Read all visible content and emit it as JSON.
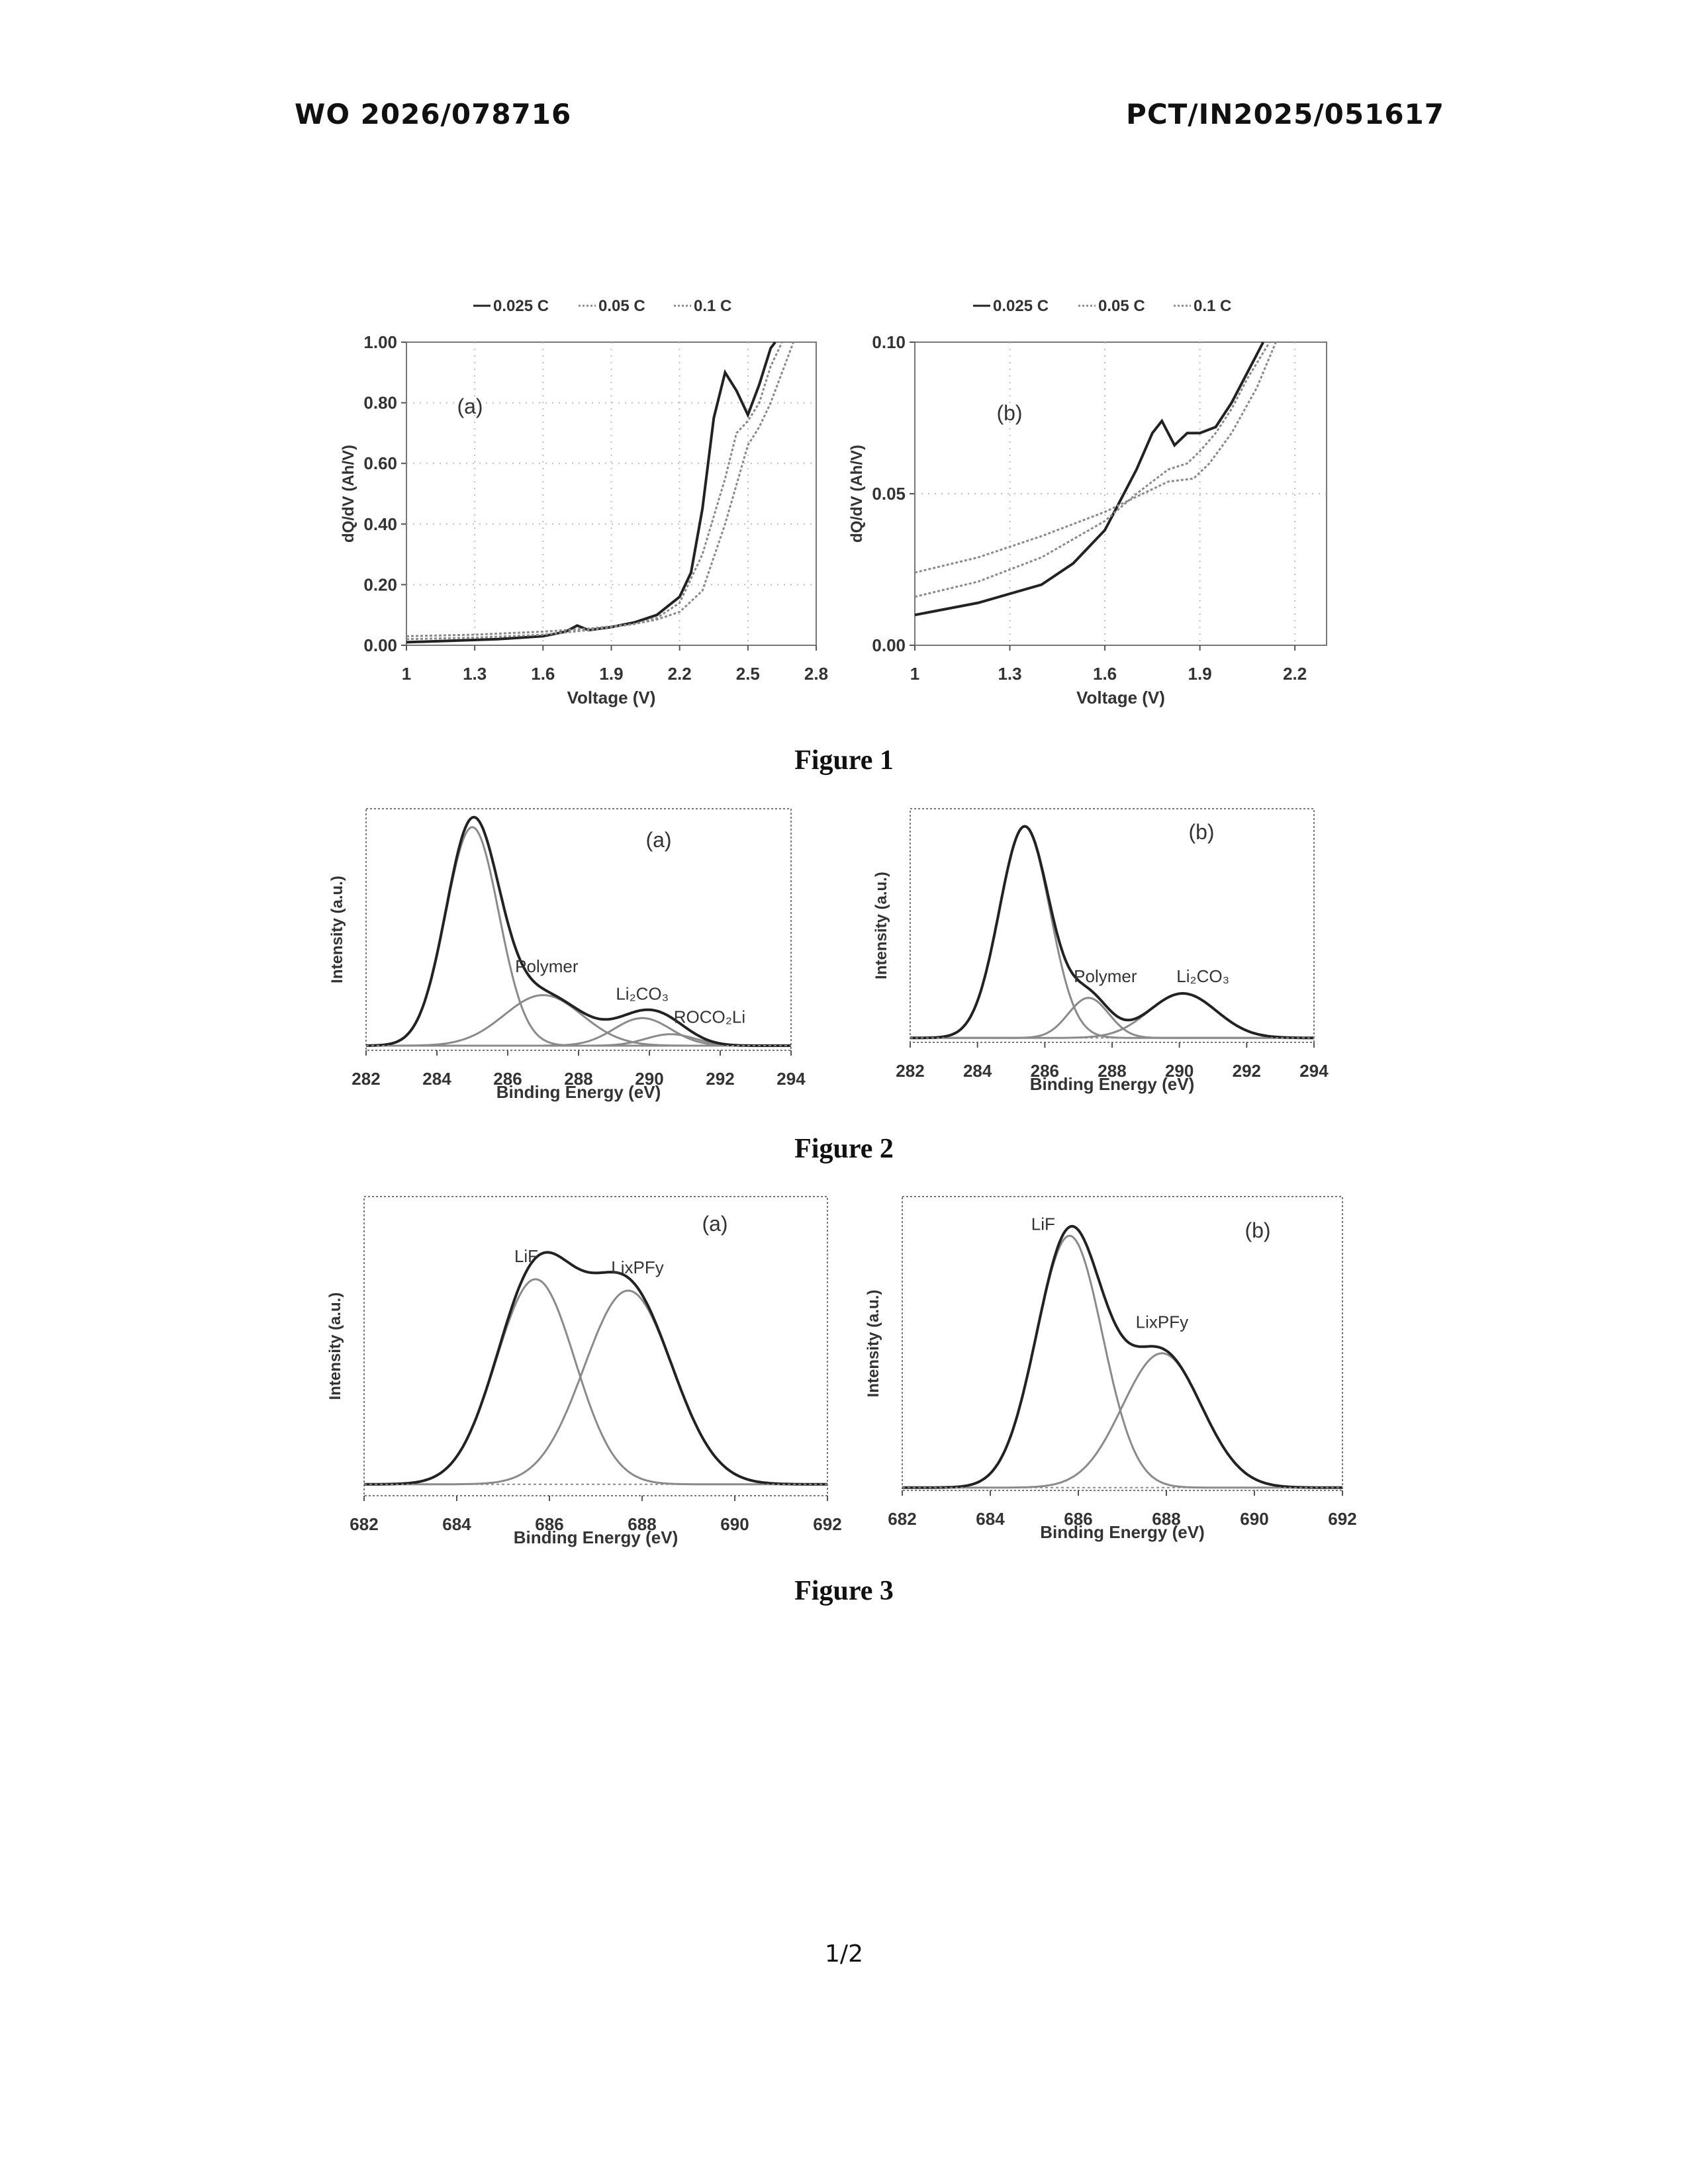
{
  "header": {
    "left": "WO 2026/078716",
    "right": "PCT/IN2025/051617"
  },
  "figure_captions": [
    "Figure 1",
    "Figure 2",
    "Figure 3"
  ],
  "page_number": "1/2",
  "colors": {
    "main": "#222222",
    "secondary": "#8a8a8a",
    "grid": "#bdbdbd"
  },
  "chart_data": [
    {
      "id": "fig1a",
      "type": "line",
      "panel_label": "(a)",
      "xlabel": "Voltage (V)",
      "ylabel": "dQ/dV (Ah/V)",
      "xlim": [
        1,
        2.8
      ],
      "ylim": [
        0,
        1.0
      ],
      "xticks": [
        1,
        1.3,
        1.6,
        1.9,
        2.2,
        2.5,
        2.8
      ],
      "xtick_labels": [
        "1",
        "1.3",
        "1.6",
        "1.9",
        "2.2",
        "2.5",
        "2.8"
      ],
      "yticks": [
        0,
        0.2,
        0.4,
        0.6,
        0.8,
        1.0
      ],
      "ytick_labels": [
        "0.00",
        "0.20",
        "0.40",
        "0.60",
        "0.80",
        "1.00"
      ],
      "grid": true,
      "legend_position": "top",
      "series": [
        {
          "name": "0.025 C",
          "style": "solid",
          "x": [
            1,
            1.2,
            1.4,
            1.6,
            1.7,
            1.75,
            1.8,
            1.9,
            2.0,
            2.1,
            2.2,
            2.25,
            2.3,
            2.35,
            2.4,
            2.45,
            2.5,
            2.55,
            2.6,
            2.62
          ],
          "y": [
            0.01,
            0.015,
            0.02,
            0.03,
            0.045,
            0.065,
            0.05,
            0.06,
            0.075,
            0.1,
            0.16,
            0.24,
            0.45,
            0.75,
            0.9,
            0.84,
            0.76,
            0.86,
            0.98,
            1.0
          ]
        },
        {
          "name": "0.05 C",
          "style": "dotted",
          "x": [
            1,
            1.3,
            1.6,
            1.8,
            2.0,
            2.1,
            2.2,
            2.3,
            2.4,
            2.45,
            2.5,
            2.55,
            2.6,
            2.65
          ],
          "y": [
            0.02,
            0.025,
            0.035,
            0.05,
            0.07,
            0.09,
            0.14,
            0.3,
            0.55,
            0.7,
            0.74,
            0.8,
            0.92,
            1.0
          ]
        },
        {
          "name": "0.1 C",
          "style": "dotted",
          "x": [
            1,
            1.3,
            1.6,
            1.8,
            2.0,
            2.1,
            2.2,
            2.3,
            2.4,
            2.5,
            2.55,
            2.6,
            2.65,
            2.7
          ],
          "y": [
            0.03,
            0.035,
            0.045,
            0.055,
            0.07,
            0.085,
            0.11,
            0.18,
            0.4,
            0.66,
            0.72,
            0.8,
            0.9,
            1.0
          ]
        }
      ]
    },
    {
      "id": "fig1b",
      "type": "line",
      "panel_label": "(b)",
      "xlabel": "Voltage (V)",
      "ylabel": "dQ/dV (Ah/V)",
      "xlim": [
        1,
        2.3
      ],
      "ylim": [
        0,
        0.1
      ],
      "xticks": [
        1,
        1.3,
        1.6,
        1.9,
        2.2
      ],
      "xtick_labels": [
        "1",
        "1.3",
        "1.6",
        "1.9",
        "2.2"
      ],
      "yticks": [
        0,
        0.05,
        0.1
      ],
      "ytick_labels": [
        "0.00",
        "0.05",
        "0.10"
      ],
      "grid": true,
      "legend_position": "top",
      "series": [
        {
          "name": "0.025 C",
          "style": "solid",
          "x": [
            1,
            1.2,
            1.4,
            1.5,
            1.6,
            1.65,
            1.7,
            1.75,
            1.78,
            1.82,
            1.86,
            1.9,
            1.95,
            2.0,
            2.05,
            2.1
          ],
          "y": [
            0.01,
            0.014,
            0.02,
            0.027,
            0.038,
            0.048,
            0.058,
            0.07,
            0.074,
            0.066,
            0.07,
            0.07,
            0.072,
            0.08,
            0.09,
            0.1
          ]
        },
        {
          "name": "0.05 C",
          "style": "dotted",
          "x": [
            1,
            1.2,
            1.4,
            1.6,
            1.7,
            1.8,
            1.86,
            1.9,
            1.95,
            2.0,
            2.05,
            2.12
          ],
          "y": [
            0.016,
            0.021,
            0.029,
            0.041,
            0.05,
            0.058,
            0.06,
            0.064,
            0.07,
            0.078,
            0.088,
            0.1
          ]
        },
        {
          "name": "0.1 C",
          "style": "dotted",
          "x": [
            1,
            1.2,
            1.4,
            1.6,
            1.7,
            1.8,
            1.88,
            1.93,
            2.0,
            2.08,
            2.14
          ],
          "y": [
            0.024,
            0.029,
            0.036,
            0.044,
            0.049,
            0.054,
            0.055,
            0.06,
            0.07,
            0.085,
            0.1
          ]
        }
      ]
    },
    {
      "id": "fig2a",
      "type": "line",
      "panel_label": "(a)",
      "xlabel": "Binding Energy (eV)",
      "ylabel": "Intensity (a.u.)",
      "xlim": [
        282,
        294
      ],
      "ylim": [
        0,
        1.05
      ],
      "xticks": [
        282,
        284,
        286,
        288,
        290,
        292,
        294
      ],
      "xtick_labels": [
        "282",
        "284",
        "286",
        "288",
        "290",
        "292",
        "294"
      ],
      "grid": false,
      "components": [
        {
          "label": "",
          "center": 285.0,
          "amp": 0.95,
          "sigma": 0.75
        },
        {
          "label": "Polymer",
          "center": 287.0,
          "amp": 0.22,
          "sigma": 1.1
        },
        {
          "label": "Li2CO3",
          "center": 289.8,
          "amp": 0.12,
          "sigma": 0.8
        },
        {
          "label": "ROCO2Li",
          "center": 290.6,
          "amp": 0.05,
          "sigma": 0.7
        }
      ],
      "baseline": 0.02,
      "annotations": [
        {
          "text": "Polymer",
          "x": 287.1,
          "y": 0.34
        },
        {
          "text": "Li₂CO₃",
          "x": 289.8,
          "y": 0.22
        },
        {
          "text": "ROCO₂Li",
          "x": 291.7,
          "y": 0.12
        }
      ]
    },
    {
      "id": "fig2b",
      "type": "line",
      "panel_label": "(b)",
      "xlabel": "Binding Energy (eV)",
      "ylabel": "Intensity (a.u.)",
      "xlim": [
        282,
        294
      ],
      "ylim": [
        0,
        1.05
      ],
      "xticks": [
        282,
        284,
        286,
        288,
        290,
        292,
        294
      ],
      "xtick_labels": [
        "282",
        "284",
        "286",
        "288",
        "290",
        "292",
        "294"
      ],
      "grid": false,
      "components": [
        {
          "label": "",
          "center": 285.4,
          "amp": 0.95,
          "sigma": 0.75
        },
        {
          "label": "Polymer",
          "center": 287.3,
          "amp": 0.18,
          "sigma": 0.6
        },
        {
          "label": "Li2CO3",
          "center": 290.1,
          "amp": 0.2,
          "sigma": 1.0
        }
      ],
      "baseline": 0.02,
      "annotations": [
        {
          "text": "Polymer",
          "x": 287.8,
          "y": 0.27
        },
        {
          "text": "Li₂CO₃",
          "x": 290.7,
          "y": 0.27
        }
      ]
    },
    {
      "id": "fig3a",
      "type": "line",
      "panel_label": "(a)",
      "xlabel": "Binding Energy (eV)",
      "ylabel": "Intensity (a.u.)",
      "xlim": [
        682,
        692
      ],
      "ylim": [
        0,
        1.05
      ],
      "xticks": [
        682,
        684,
        686,
        688,
        690,
        692
      ],
      "xtick_labels": [
        "682",
        "684",
        "686",
        "688",
        "690",
        "692"
      ],
      "grid": false,
      "components": [
        {
          "label": "LiF",
          "center": 685.7,
          "amp": 0.72,
          "sigma": 0.85
        },
        {
          "label": "LixPFy",
          "center": 687.7,
          "amp": 0.68,
          "sigma": 0.95
        }
      ],
      "baseline": 0.04,
      "annotations": [
        {
          "text": "LiF",
          "x": 685.5,
          "y": 0.82
        },
        {
          "text": "LixPFy",
          "x": 687.9,
          "y": 0.78
        }
      ]
    },
    {
      "id": "fig3b",
      "type": "line",
      "panel_label": "(b)",
      "xlabel": "Binding Energy (eV)",
      "ylabel": "Intensity (a.u.)",
      "xlim": [
        682,
        692
      ],
      "ylim": [
        0,
        1.05
      ],
      "xticks": [
        682,
        684,
        686,
        688,
        690,
        692
      ],
      "xtick_labels": [
        "682",
        "684",
        "686",
        "688",
        "690",
        "692"
      ],
      "grid": false,
      "components": [
        {
          "label": "LiF",
          "center": 685.8,
          "amp": 0.9,
          "sigma": 0.75
        },
        {
          "label": "LixPFy",
          "center": 687.9,
          "amp": 0.48,
          "sigma": 0.9
        }
      ],
      "baseline": 0.01,
      "annotations": [
        {
          "text": "LiF",
          "x": 685.2,
          "y": 0.93
        },
        {
          "text": "LixPFy",
          "x": 687.9,
          "y": 0.58
        }
      ]
    }
  ]
}
